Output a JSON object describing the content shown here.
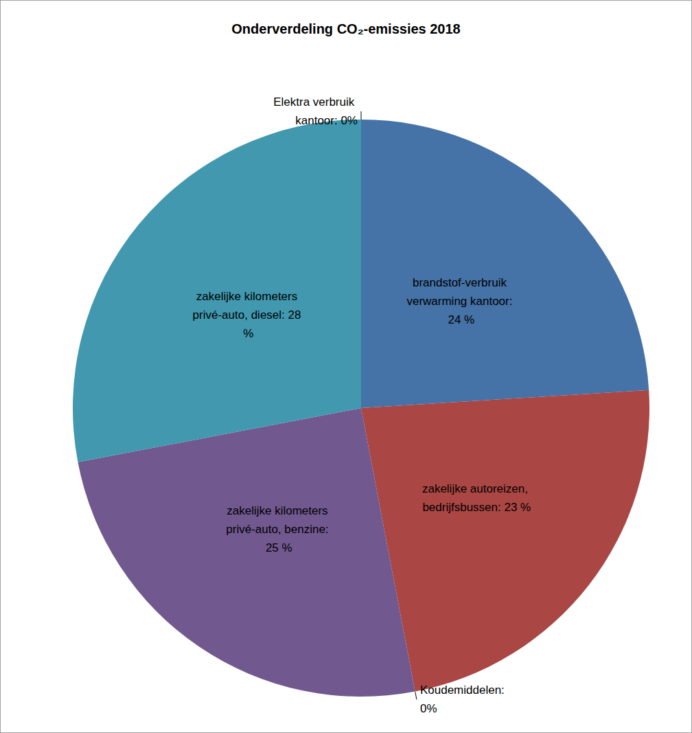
{
  "chart_data": {
    "type": "pie",
    "title": "Onderverdeling CO₂-emissies 2018",
    "categories": [
      "Elektra verbruik kantoor",
      "brandstof-verbruik verwarming kantoor",
      "zakelijke autoreizen, bedrijfsbussen",
      "Koudemiddelen",
      "zakelijke kilometers privé-auto, benzine",
      "zakelijke kilometers privé-auto, diesel"
    ],
    "values": [
      0,
      24,
      23,
      0,
      25,
      28
    ],
    "value_labels": [
      "Elektra verbruik kantoor: 0%",
      "brandstof-verbruik verwarming kantoor: 24 %",
      "zakelijke autoreizen, bedrijfsbussen: 23 %",
      "Koudemiddelen: 0%",
      "zakelijke kilometers privé-auto, benzine: 25 %",
      "zakelijke kilometers privé-auto, diesel: 28 %"
    ],
    "colors": [
      "#4f81bd",
      "#4572a7",
      "#aa4643",
      "#89a54e",
      "#71588f",
      "#4198af"
    ],
    "data_labels": true
  }
}
